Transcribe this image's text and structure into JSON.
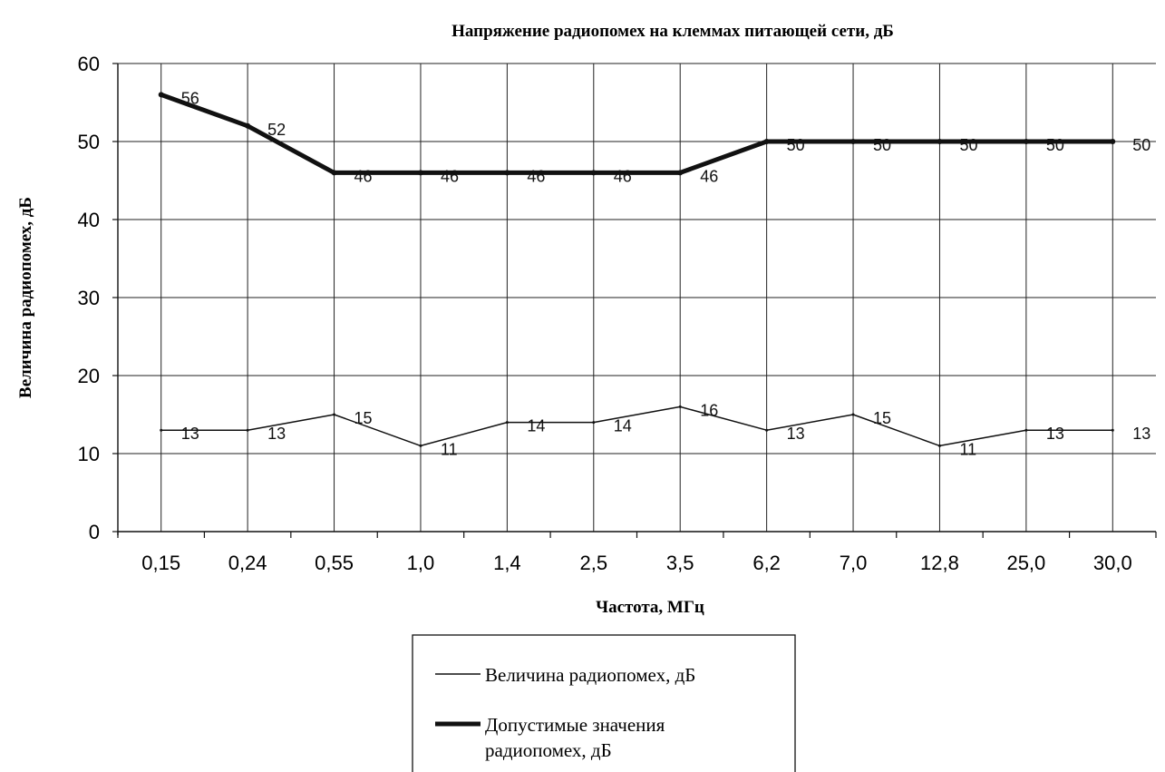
{
  "chart_data": {
    "type": "line",
    "title": "Напряжение радиопомех на клеммах питающей сети, дБ",
    "xlabel": "Частота, МГц",
    "ylabel": "Величина радиопомех, дБ",
    "categories": [
      "0,15",
      "0,24",
      "0,55",
      "1,0",
      "1,4",
      "2,5",
      "3,5",
      "6,2",
      "7,0",
      "12,8",
      "25,0",
      "30,0"
    ],
    "ylim": [
      0,
      60
    ],
    "yticks": [
      0,
      10,
      20,
      30,
      40,
      50,
      60
    ],
    "grid": true,
    "legend_position": "bottom",
    "series": [
      {
        "name": "Величина радиопомех, дБ",
        "values": [
          13,
          13,
          15,
          11,
          14,
          14,
          16,
          13,
          15,
          11,
          13,
          13
        ],
        "color": "#111111",
        "style": "thin"
      },
      {
        "name": "Допустимые значения радиопомех, дБ",
        "values": [
          56,
          52,
          46,
          46,
          46,
          46,
          46,
          50,
          50,
          50,
          50,
          50
        ],
        "color": "#111111",
        "style": "thick"
      }
    ]
  }
}
